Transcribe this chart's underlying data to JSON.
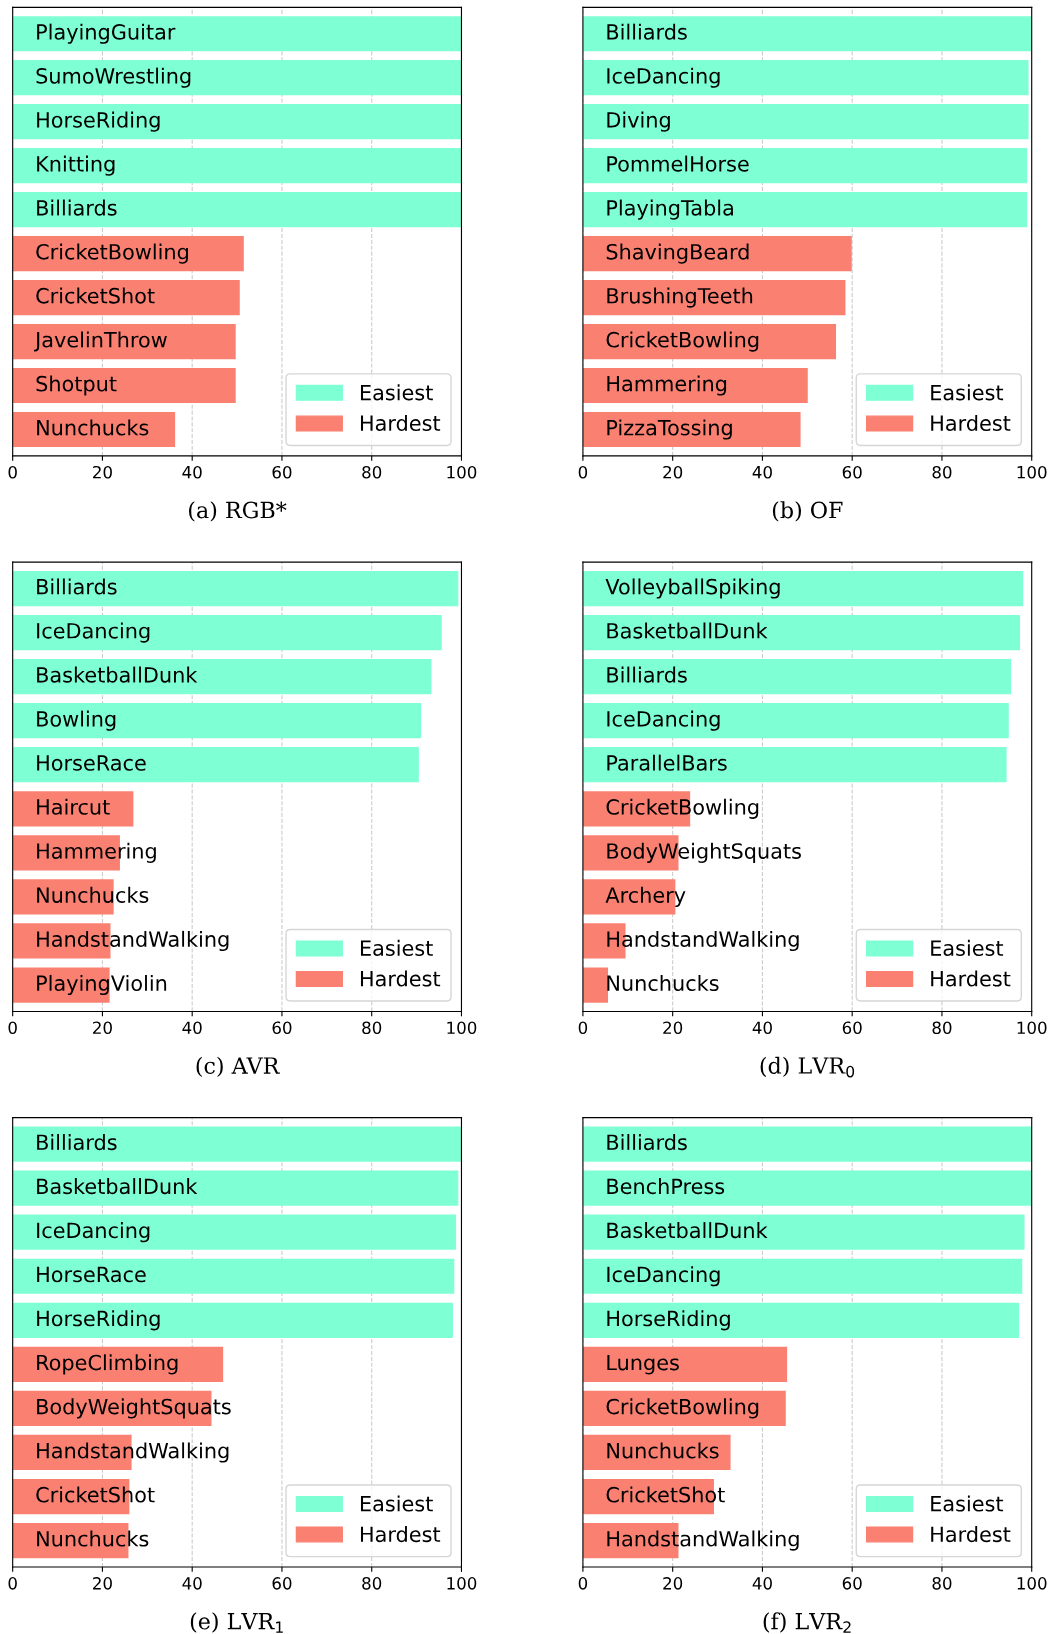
{
  "chart_data": [
    {
      "type": "bar",
      "orientation": "horizontal",
      "title": "(a) RGB*",
      "categories": [
        "PlayingGuitar",
        "SumoWrestling",
        "HorseRiding",
        "Knitting",
        "Billiards",
        "CricketBowling",
        "CricketShot",
        "JavelinThrow",
        "Shotput",
        "Nunchucks"
      ],
      "series": [
        {
          "name": "Hardest",
          "color": "#fa8072",
          "values": [
            null,
            null,
            null,
            null,
            null,
            51.5,
            50.6,
            49.7,
            49.7,
            36.2
          ]
        },
        {
          "name": "Easiest",
          "color": "#7fffd4",
          "values": [
            100,
            100,
            100,
            100,
            100,
            null,
            null,
            null,
            null,
            null
          ]
        }
      ],
      "xlim": [
        0,
        100
      ],
      "xticks": [
        0,
        20,
        40,
        60,
        80,
        100
      ],
      "grid": "x",
      "legend": "bottom right"
    },
    {
      "type": "bar",
      "orientation": "horizontal",
      "title": "(b) OF",
      "categories": [
        "Billiards",
        "IceDancing",
        "Diving",
        "PommelHorse",
        "PlayingTabla",
        "ShavingBeard",
        "BrushingTeeth",
        "CricketBowling",
        "Hammering",
        "PizzaTossing"
      ],
      "series": [
        {
          "name": "Hardest",
          "color": "#fa8072",
          "values": [
            null,
            null,
            null,
            null,
            null,
            59.9,
            58.5,
            56.4,
            50.1,
            48.5
          ]
        },
        {
          "name": "Easiest",
          "color": "#7fffd4",
          "values": [
            100,
            99.3,
            99.3,
            99,
            99,
            null,
            null,
            null,
            null,
            null
          ]
        }
      ],
      "xlim": [
        0,
        100
      ],
      "xticks": [
        0,
        20,
        40,
        60,
        80,
        100
      ],
      "grid": "x",
      "legend": "bottom right"
    },
    {
      "type": "bar",
      "orientation": "horizontal",
      "title": "(c) AVR",
      "categories": [
        "Billiards",
        "IceDancing",
        "BasketballDunk",
        "Bowling",
        "HorseRace",
        "Haircut",
        "Hammering",
        "Nunchucks",
        "HandstandWalking",
        "PlayingViolin"
      ],
      "series": [
        {
          "name": "Hardest",
          "color": "#fa8072",
          "values": [
            null,
            null,
            null,
            null,
            null,
            26.9,
            23.9,
            22.5,
            21.8,
            21.6
          ]
        },
        {
          "name": "Easiest",
          "color": "#7fffd4",
          "values": [
            99.3,
            95.6,
            93.3,
            91,
            90.5,
            null,
            null,
            null,
            null,
            null
          ]
        }
      ],
      "xlim": [
        0,
        100
      ],
      "xticks": [
        0,
        20,
        40,
        60,
        80,
        100
      ],
      "grid": "x",
      "legend": "bottom right"
    },
    {
      "type": "bar",
      "orientation": "horizontal",
      "title": "(d) LVR$_{0}$",
      "categories": [
        "VolleyballSpiking",
        "BasketballDunk",
        "Billiards",
        "IceDancing",
        "ParallelBars",
        "CricketBowling",
        "BodyWeightSquats",
        "Archery",
        "HandstandWalking",
        "Nunchucks"
      ],
      "series": [
        {
          "name": "Hardest",
          "color": "#fa8072",
          "values": [
            null,
            null,
            null,
            null,
            null,
            23.9,
            21.3,
            20.6,
            9.5,
            5.6
          ]
        },
        {
          "name": "Easiest",
          "color": "#7fffd4",
          "values": [
            98.1,
            97.4,
            95.4,
            94.9,
            94.4,
            null,
            null,
            null,
            null,
            null
          ]
        }
      ],
      "xlim": [
        0,
        100
      ],
      "xticks": [
        0,
        20,
        40,
        60,
        80,
        100
      ],
      "grid": "x",
      "legend": "bottom right"
    },
    {
      "type": "bar",
      "orientation": "horizontal",
      "title": "(e) LVR$_{1}$",
      "categories": [
        "Billiards",
        "BasketballDunk",
        "IceDancing",
        "HorseRace",
        "HorseRiding",
        "RopeClimbing",
        "BodyWeightSquats",
        "HandstandWalking",
        "CricketShot",
        "Nunchucks"
      ],
      "series": [
        {
          "name": "Hardest",
          "color": "#fa8072",
          "values": [
            null,
            null,
            null,
            null,
            null,
            46.9,
            44.3,
            26.5,
            26,
            25.8
          ]
        },
        {
          "name": "Easiest",
          "color": "#7fffd4",
          "values": [
            100,
            99.3,
            98.8,
            98.4,
            98.1,
            null,
            null,
            null,
            null,
            null
          ]
        }
      ],
      "xlim": [
        0,
        100
      ],
      "xticks": [
        0,
        20,
        40,
        60,
        80,
        100
      ],
      "grid": "x",
      "legend": "bottom right"
    },
    {
      "type": "bar",
      "orientation": "horizontal",
      "title": "(f) LVR$_{2}$",
      "categories": [
        "Billiards",
        "BenchPress",
        "BasketballDunk",
        "IceDancing",
        "HorseRiding",
        "Lunges",
        "CricketBowling",
        "Nunchucks",
        "CricketShot",
        "HandstandWalking"
      ],
      "series": [
        {
          "name": "Hardest",
          "color": "#fa8072",
          "values": [
            null,
            null,
            null,
            null,
            null,
            45.5,
            45.2,
            32.9,
            29.2,
            21.3
          ]
        },
        {
          "name": "Easiest",
          "color": "#7fffd4",
          "values": [
            100,
            100,
            98.4,
            97.9,
            97.2,
            null,
            null,
            null,
            null,
            null
          ]
        }
      ],
      "xlim": [
        0,
        100
      ],
      "xticks": [
        0,
        20,
        40,
        60,
        80,
        100
      ],
      "grid": "x",
      "legend": "bottom right"
    }
  ]
}
